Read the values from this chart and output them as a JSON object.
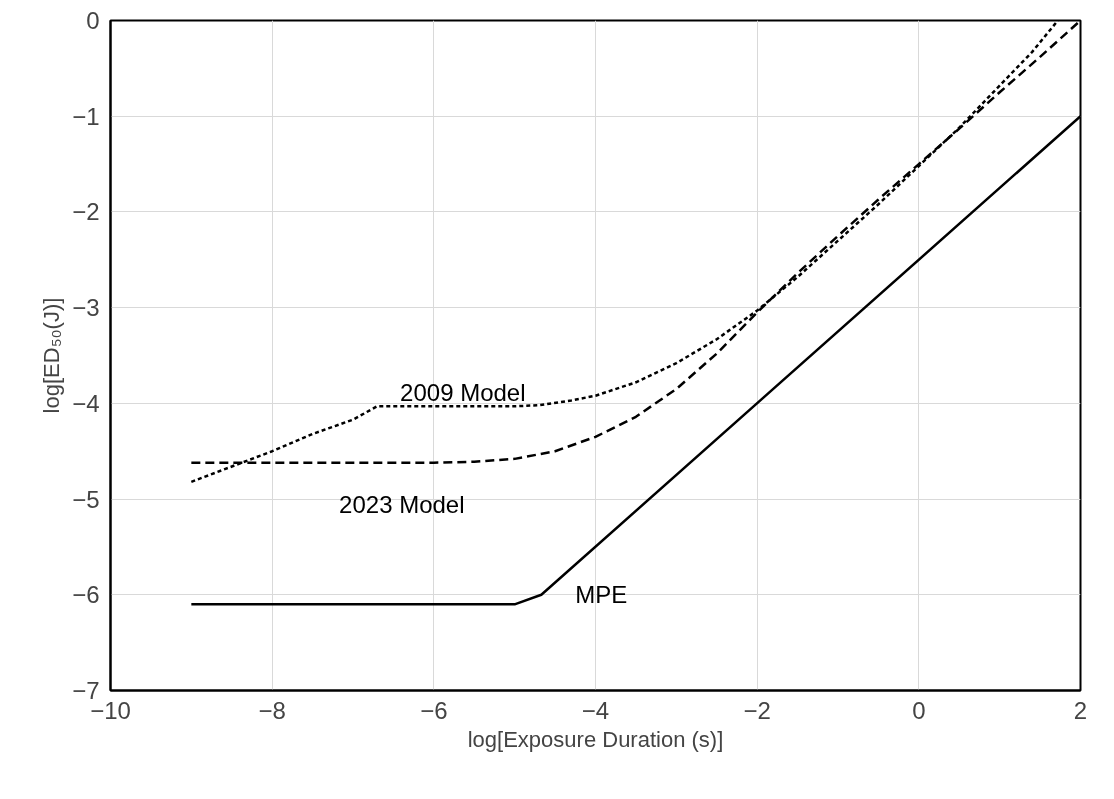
{
  "chart_data": {
    "type": "line",
    "xlabel": "log[Exposure Duration (s)]",
    "ylabel": "log[ED₅₀(J)]",
    "xlim": [
      -10,
      2
    ],
    "ylim": [
      -7,
      0
    ],
    "xticks": [
      -10,
      -8,
      -6,
      -4,
      -2,
      0,
      2
    ],
    "yticks": [
      -7,
      -6,
      -5,
      -4,
      -3,
      -2,
      -1,
      0
    ],
    "grid": true,
    "series": [
      {
        "name": "2009 Model",
        "color": "#000000",
        "line_style": "dotted",
        "x": [
          -9,
          -8,
          -7.5,
          -7,
          -6.7,
          -6,
          -5,
          -4.7,
          -4.3,
          -4,
          -3.5,
          -3,
          -2.5,
          -2,
          -1.5,
          -1,
          -0.5,
          0,
          0.5,
          1,
          1.4,
          1.72
        ],
        "values": [
          -4.82,
          -4.5,
          -4.32,
          -4.17,
          -4.03,
          -4.03,
          -4.03,
          -4.02,
          -3.97,
          -3.92,
          -3.78,
          -3.58,
          -3.33,
          -3.03,
          -2.68,
          -2.3,
          -1.92,
          -1.52,
          -1.12,
          -0.68,
          -0.33,
          0
        ]
      },
      {
        "name": "2023 Model",
        "color": "#000000",
        "line_style": "dashed",
        "x": [
          -9,
          -8,
          -7,
          -6,
          -5.5,
          -5,
          -4.5,
          -4,
          -3.5,
          -3,
          -2.5,
          -2,
          -1.5,
          -1,
          -0.5,
          0,
          0.5,
          1,
          1.5,
          2
        ],
        "values": [
          -4.62,
          -4.62,
          -4.62,
          -4.62,
          -4.61,
          -4.58,
          -4.5,
          -4.35,
          -4.14,
          -3.85,
          -3.48,
          -3.05,
          -2.64,
          -2.25,
          -1.87,
          -1.5,
          -1.13,
          -0.75,
          -0.38,
          0
        ]
      },
      {
        "name": "MPE",
        "color": "#000000",
        "line_style": "solid",
        "x": [
          -9,
          -5,
          -4.67,
          2
        ],
        "values": [
          -6.1,
          -6.1,
          -6.0,
          -1.0
        ]
      }
    ]
  }
}
